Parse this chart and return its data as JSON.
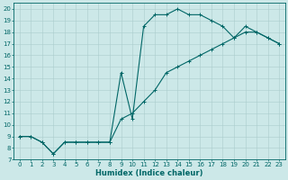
{
  "bg_color": "#cce8e8",
  "grid_color": "#aacccc",
  "line_color": "#006666",
  "xlabel": "Humidex (Indice chaleur)",
  "xlim": [
    -0.5,
    23.5
  ],
  "ylim": [
    7,
    20.5
  ],
  "xticks": [
    0,
    1,
    2,
    3,
    4,
    5,
    6,
    7,
    8,
    9,
    10,
    11,
    12,
    13,
    14,
    15,
    16,
    17,
    18,
    19,
    20,
    21,
    22,
    23
  ],
  "yticks": [
    7,
    8,
    9,
    10,
    11,
    12,
    13,
    14,
    15,
    16,
    17,
    18,
    19,
    20
  ],
  "upper_x": [
    0,
    1,
    2,
    3,
    4,
    5,
    6,
    7,
    8,
    9,
    10,
    11,
    12,
    13,
    14,
    15,
    16,
    17,
    18,
    19,
    20,
    21,
    22,
    23
  ],
  "upper_y": [
    9.0,
    9.0,
    8.5,
    7.5,
    8.5,
    8.5,
    8.5,
    8.5,
    8.5,
    14.5,
    10.5,
    18.5,
    19.5,
    19.5,
    20.0,
    19.5,
    19.5,
    19.0,
    18.5,
    17.5,
    18.5,
    18.0,
    17.5,
    17.0
  ],
  "lower_x": [
    0,
    1,
    2,
    3,
    4,
    5,
    6,
    7,
    8,
    9,
    10,
    11,
    12,
    13,
    14,
    15,
    16,
    17,
    18,
    19,
    20,
    21,
    22,
    23
  ],
  "lower_y": [
    9.0,
    9.0,
    8.5,
    7.5,
    8.5,
    8.5,
    8.5,
    8.5,
    8.5,
    10.5,
    11.0,
    12.0,
    13.0,
    14.5,
    15.0,
    15.5,
    16.0,
    16.5,
    17.0,
    17.5,
    18.0,
    18.0,
    17.5,
    17.0
  ],
  "xlabel_fontsize": 6,
  "tick_fontsize": 5,
  "linewidth": 0.8,
  "markersize": 2.5,
  "markeredgewidth": 0.7
}
